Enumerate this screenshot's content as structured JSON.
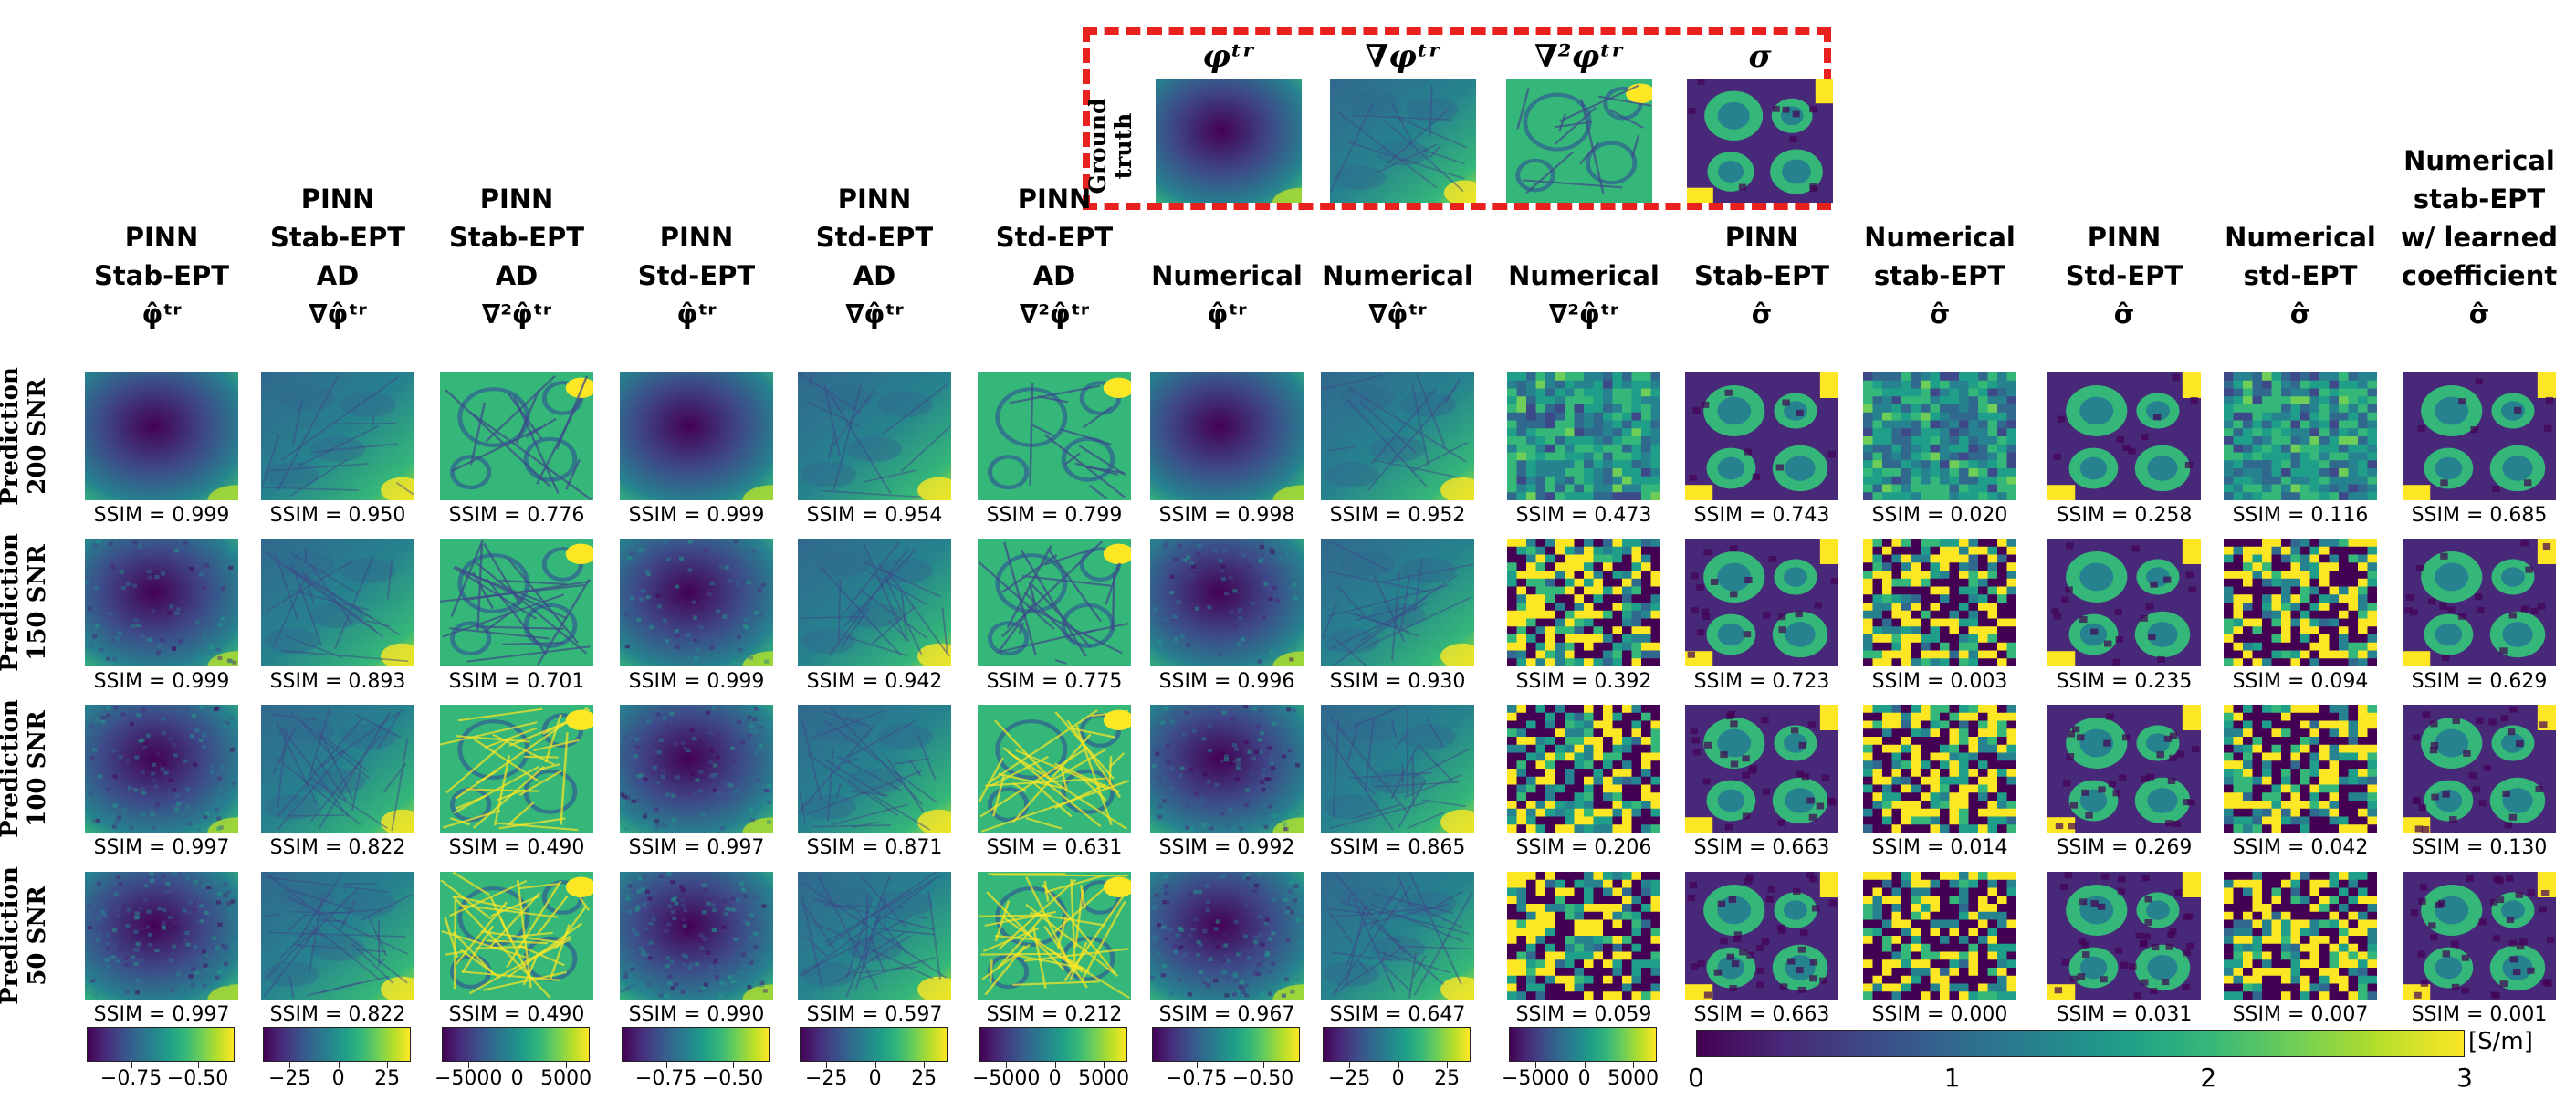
{
  "chart_data": {
    "type": "heatmap",
    "title": "",
    "ground_truth": {
      "label": "Ground\ntruth",
      "panels": [
        "φᵗʳ",
        "∇φᵗʳ",
        "∇²φᵗʳ",
        "σ"
      ]
    },
    "columns": [
      {
        "title": "PINN\nStab-EPT\nφ̂ᵗʳ",
        "kind": "phi"
      },
      {
        "title": "PINN\nStab-EPT\nAD\n∇φ̂ᵗʳ",
        "kind": "grad"
      },
      {
        "title": "PINN\nStab-EPT\nAD\n∇²φ̂ᵗʳ",
        "kind": "lap"
      },
      {
        "title": "PINN\nStd-EPT\nφ̂ᵗʳ",
        "kind": "phi"
      },
      {
        "title": "PINN\nStd-EPT\nAD\n∇φ̂ᵗʳ",
        "kind": "grad"
      },
      {
        "title": "PINN\nStd-EPT\nAD\n∇²φ̂ᵗʳ",
        "kind": "lap"
      },
      {
        "title": "Numerical\nφ̂ᵗʳ",
        "kind": "phi"
      },
      {
        "title": "Numerical\n∇φ̂ᵗʳ",
        "kind": "grad"
      },
      {
        "title": "Numerical\n∇²φ̂ᵗʳ",
        "kind": "noise"
      },
      {
        "title": "PINN\nStab-EPT\nσ̂",
        "kind": "sigma"
      },
      {
        "title": "Numerical\nstab-EPT\nσ̂",
        "kind": "noise"
      },
      {
        "title": "PINN\nStd-EPT\nσ̂",
        "kind": "sigma"
      },
      {
        "title": "Numerical\nstd-EPT\nσ̂",
        "kind": "noise"
      },
      {
        "title": "Numerical\nstab-EPT\nw/ learned\ncoefficient\nσ̂",
        "kind": "sigma"
      }
    ],
    "rows": [
      {
        "label": "Prediction\n200 SNR",
        "ssim": [
          "0.999",
          "0.950",
          "0.776",
          "0.999",
          "0.954",
          "0.799",
          "0.998",
          "0.952",
          "0.473",
          "0.743",
          "0.020",
          "0.258",
          "0.116",
          "0.685"
        ]
      },
      {
        "label": "Prediction\n150 SNR",
        "ssim": [
          "0.999",
          "0.893",
          "0.701",
          "0.999",
          "0.942",
          "0.775",
          "0.996",
          "0.930",
          "0.392",
          "0.723",
          "0.003",
          "0.235",
          "0.094",
          "0.629"
        ]
      },
      {
        "label": "Prediction\n100 SNR",
        "ssim": [
          "0.997",
          "0.822",
          "0.490",
          "0.997",
          "0.871",
          "0.631",
          "0.992",
          "0.865",
          "0.206",
          "0.663",
          "0.014",
          "0.269",
          "0.042",
          "0.130"
        ]
      },
      {
        "label": "Prediction\n50 SNR",
        "ssim": [
          "0.997",
          "0.822",
          "0.490",
          "0.990",
          "0.597",
          "0.212",
          "0.967",
          "0.647",
          "0.059",
          "0.663",
          "0.000",
          "0.031",
          "0.007",
          "0.001"
        ]
      }
    ],
    "ssim_prefix": "SSIM = ",
    "colorbars": [
      {
        "ticks": [
          "−0.75",
          "−0.50"
        ]
      },
      {
        "ticks": [
          "−25",
          "0",
          "25"
        ]
      },
      {
        "ticks": [
          "−5000",
          "0",
          "5000"
        ]
      },
      {
        "ticks": [
          "−0.75",
          "−0.50"
        ]
      },
      {
        "ticks": [
          "−25",
          "0",
          "25"
        ]
      },
      {
        "ticks": [
          "−5000",
          "0",
          "5000"
        ]
      },
      {
        "ticks": [
          "−0.75",
          "−0.50"
        ]
      },
      {
        "ticks": [
          "−25",
          "0",
          "25"
        ]
      },
      {
        "ticks": [
          "−5000",
          "0",
          "5000"
        ]
      }
    ],
    "sigma_colorbar": {
      "ticks": [
        "0",
        "1",
        "2",
        "3"
      ],
      "range": [
        0,
        3
      ],
      "unit": "[S/m]"
    },
    "colormap": [
      "#440154",
      "#482878",
      "#3e4989",
      "#31688e",
      "#26828e",
      "#1f9e89",
      "#35b779",
      "#6ece58",
      "#b5de2b",
      "#fde725"
    ]
  }
}
